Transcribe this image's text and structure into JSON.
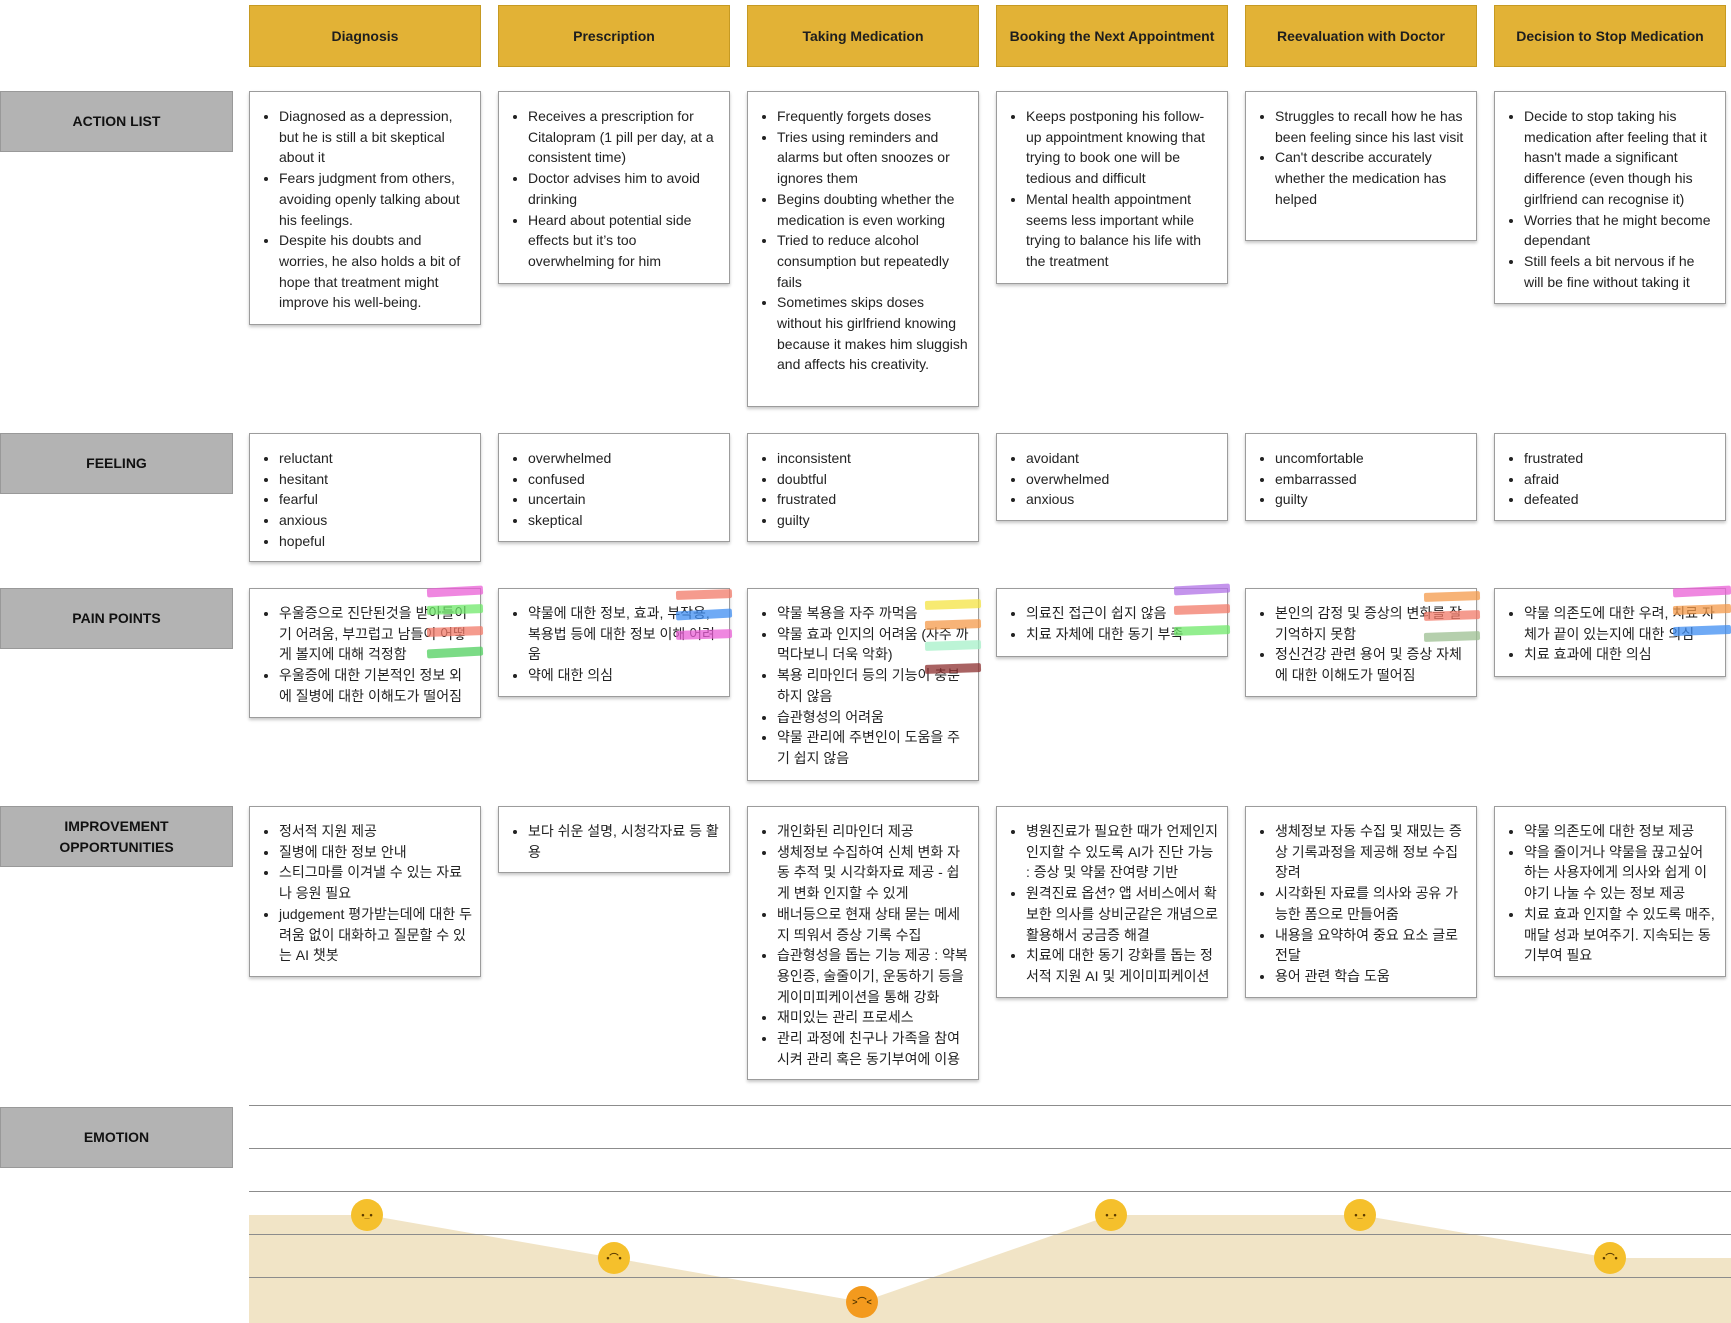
{
  "stages": [
    "Diagnosis",
    "Prescription",
    "Taking Medication",
    "Booking the Next Appointment",
    "Reevaluation with Doctor",
    "Decision to Stop Medication"
  ],
  "row_labels": {
    "action": "ACTION LIST",
    "feeling": "FEELING",
    "pain": "PAIN POINTS",
    "improvement": "IMPROVEMENT OPPORTUNITIES",
    "emotion": "EMOTION"
  },
  "action_list": [
    [
      "Diagnosed as a depression, but he is still a bit skeptical about it",
      "Fears judgment from others, avoiding openly talking about his feelings.",
      "Despite his doubts and worries, he also holds a bit of hope that treatment might improve his well-being."
    ],
    [
      "Receives a prescription for Citalopram (1 pill per day, at a consistent time)",
      "Doctor advises him to avoid drinking",
      "Heard about potential side effects but it’s too overwhelming for him"
    ],
    [
      "Frequently forgets doses",
      "Tries using reminders and alarms but often snoozes or ignores them",
      "Begins doubting whether the medication is even working",
      "Tried to reduce alcohol consumption but repeatedly fails",
      "Sometimes skips doses without his girlfriend knowing because it makes him sluggish and affects his creativity."
    ],
    [
      "Keeps postponing his follow-up appointment knowing that trying to book one will be tedious and difficult",
      "Mental health appointment seems less important while trying to balance his life with the treatment"
    ],
    [
      "Struggles to recall how he has been feeling since his last visit",
      "Can't describe accurately whether the medication has helped"
    ],
    [
      "Decide to stop taking his medication after feeling that it hasn't made a significant difference (even though his girlfriend can recognise it)",
      "Worries that he might become dependant",
      "Still feels a bit nervous if he will be fine without taking it"
    ]
  ],
  "feeling": [
    [
      "reluctant",
      "hesitant",
      "fearful",
      "anxious",
      "hopeful"
    ],
    [
      "overwhelmed",
      "confused",
      "uncertain",
      "skeptical"
    ],
    [
      "inconsistent",
      "doubtful",
      "frustrated",
      "guilty"
    ],
    [
      "avoidant",
      "overwhelmed",
      "anxious"
    ],
    [
      "uncomfortable",
      "embarrassed",
      "guilty"
    ],
    [
      "frustrated",
      "afraid",
      "defeated"
    ]
  ],
  "pain_points": [
    [
      "우울증으로 진단된것을 받아들이기 어려움, 부끄럽고 남들이 어떻게 볼지에 대해 걱정함",
      "우울증에 대한 기본적인 정보 외에 질병에 대한 이해도가 떨어짐"
    ],
    [
      "약물에 대한 정보, 효과, 부작용, 복용법 등에 대한 정보 이해 어려움",
      "약에 대한 의심"
    ],
    [
      "약물 복용을 자주 까먹음",
      "약물 효과 인지의 어려움 (자주 까먹다보니 더욱 악화)",
      "복용 리마인더 등의 기능이 충분하지 않음",
      "습관형성의 어려움",
      "약물 관리에 주변인이 도움을 주기 쉽지 않음"
    ],
    [
      "의료진 접근이 쉽지 않음",
      "치료 자체에 대한 동기 부족"
    ],
    [
      "본인의 감정 및 증상의 변화를 잘 기억하지 못함",
      "정신건강 관련 용어 및 증상 자체에 대한 이해도가 떨어짐"
    ],
    [
      "약물 의존도에 대한 우려, 치료 자체가 끝이 있는지에 대한 의심",
      "치료 효과에 대한 의심"
    ]
  ],
  "improvement": [
    [
      "정서적 지원 제공",
      "질병에 대한 정보 안내",
      "스티그마를 이겨낼 수 있는 자료나 응원 필요",
      "judgement 평가받는데에 대한 두려움 없이 대화하고 질문할 수 있는 AI 챗봇"
    ],
    [
      "보다 쉬운 설명, 시청각자료 등 활용"
    ],
    [
      "개인화된 리마인더 제공",
      "생체정보 수집하여 신체 변화 자동 추적 및 시각화자료 제공 - 쉽게 변화 인지할 수 있게",
      "배너등으로 현재 상태 묻는 메세지 띄워서 증상 기록 수집",
      "습관형성을 돕는 기능 제공 : 약복용인증, 술줄이기, 운동하기 등을 게이미피케이션을 통해 강화",
      "재미있는 관리 프로세스",
      "관리 과정에 친구나 가족을 참여시켜 관리 혹은 동기부여에 이용"
    ],
    [
      "병원진료가 필요한 때가 언제인지 인지할 수 있도록 AI가 진단 가능 : 증상 및 약물 잔여량 기반",
      "원격진료 옵션? 앱 서비스에서 확보한 의사를 상비군같은 개념으로 활용해서 궁금증 해결",
      "치료에 대한 동기 강화를 돕는 정서적 지원 AI 및 게이미피케이션"
    ],
    [
      "생체정보 자동 수집 및 재밌는 증상 기록과정을 제공해 정보 수집 장려",
      " 시각화된 자료를 의사와 공유 가능한 폼으로 만들어줌",
      "내용을 요약하여 중요 요소 글로 전달",
      "용어 관련 학습 도움"
    ],
    [
      "약물 의존도에 대한 정보 제공",
      "약을 줄이거나 약물을 끊고싶어 하는 사용자에게 의사와 쉽게 이야기 나눌 수 있는 정보 제공",
      "치료 효과 인지할 수 있도록 매주, 매달 성과 보여주기. 지속되는 동기부여 필요"
    ]
  ],
  "emotion_levels": [
    {
      "stage": "Diagnosis",
      "level": 3,
      "face": "neutral-face-icon"
    },
    {
      "stage": "Prescription",
      "level": 2,
      "face": "sad-face-icon"
    },
    {
      "stage": "Taking Medication",
      "level": 1,
      "face": "angry-face-icon"
    },
    {
      "stage": "Booking the Next Appointment",
      "level": 3,
      "face": "neutral-face-icon"
    },
    {
      "stage": "Reevaluation with Doctor",
      "level": 3,
      "face": "neutral-face-icon"
    },
    {
      "stage": "Decision to Stop Medication",
      "level": 2,
      "face": "sad-face-icon"
    }
  ],
  "colors": {
    "stage_header": "#e2b236",
    "row_label": "#b3b3b3",
    "emotion_fill": "#f1e4c6",
    "face": "#f5c02c",
    "face_angry": "#f39a1e",
    "sticky_pink": "#e95fd6",
    "sticky_green": "#6fe86a",
    "sticky_salmon": "#f27a68",
    "sticky_blue": "#3f8ef2",
    "sticky_yellow": "#f4e342",
    "sticky_purple": "#b070e6",
    "sticky_orange": "#f49a4a",
    "sticky_sage": "#9cbf92",
    "sticky_mint": "#a5f0c8",
    "sticky_darkred": "#8c2f2f"
  }
}
